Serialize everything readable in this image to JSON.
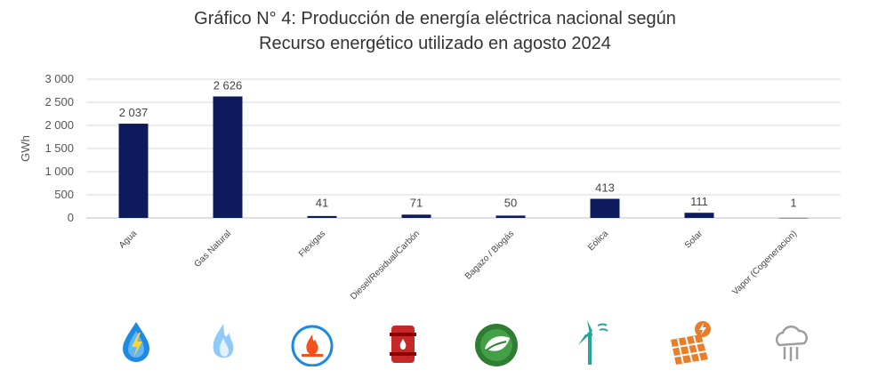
{
  "title_line1": "Gráfico N° 4: Producción de energía eléctrica nacional según",
  "title_line2": "Recurso energético utilizado en agosto 2024",
  "colors": {
    "bar": "#0d1a5c",
    "grid": "#d9d9d9",
    "axis": "#bfbfbf"
  },
  "chart_data": {
    "type": "bar",
    "title": "Gráfico N° 4: Producción de energía eléctrica nacional según Recurso energético utilizado en agosto 2024",
    "xlabel": "",
    "ylabel": "GWh",
    "ylim": [
      0,
      3000
    ],
    "yticks": [
      0,
      500,
      1000,
      1500,
      2000,
      2500,
      3000
    ],
    "ytick_labels": [
      "0",
      "500",
      "1 000",
      "1 500",
      "2 000",
      "2 500",
      "3 000"
    ],
    "grid": true,
    "categories": [
      "Agua",
      "Gas Natural",
      "Flexigas",
      "Diesel/Residual/Carbón",
      "Bagazo / Biogás",
      "Eólica",
      "Solar",
      "Vapor (Cogeneracion)"
    ],
    "values": [
      2037,
      2626,
      41,
      71,
      50,
      413,
      111,
      1
    ],
    "value_labels": [
      "2 037",
      "2 626",
      "41",
      "71",
      "50",
      "413",
      "111",
      "1"
    ]
  },
  "icons": [
    {
      "name": "water-energy-icon",
      "color": "#1e88e5"
    },
    {
      "name": "gas-flame-icon",
      "color": "#90caf9"
    },
    {
      "name": "flexigas-flame-icon",
      "color": "#1e88e5"
    },
    {
      "name": "oil-barrel-icon",
      "color": "#c62828"
    },
    {
      "name": "biogas-leaf-icon",
      "color": "#2e7d32"
    },
    {
      "name": "wind-turbine-icon",
      "color": "#26a69a"
    },
    {
      "name": "solar-panel-icon",
      "color": "#e87d2a"
    },
    {
      "name": "steam-cloud-icon",
      "color": "#9e9e9e"
    }
  ]
}
